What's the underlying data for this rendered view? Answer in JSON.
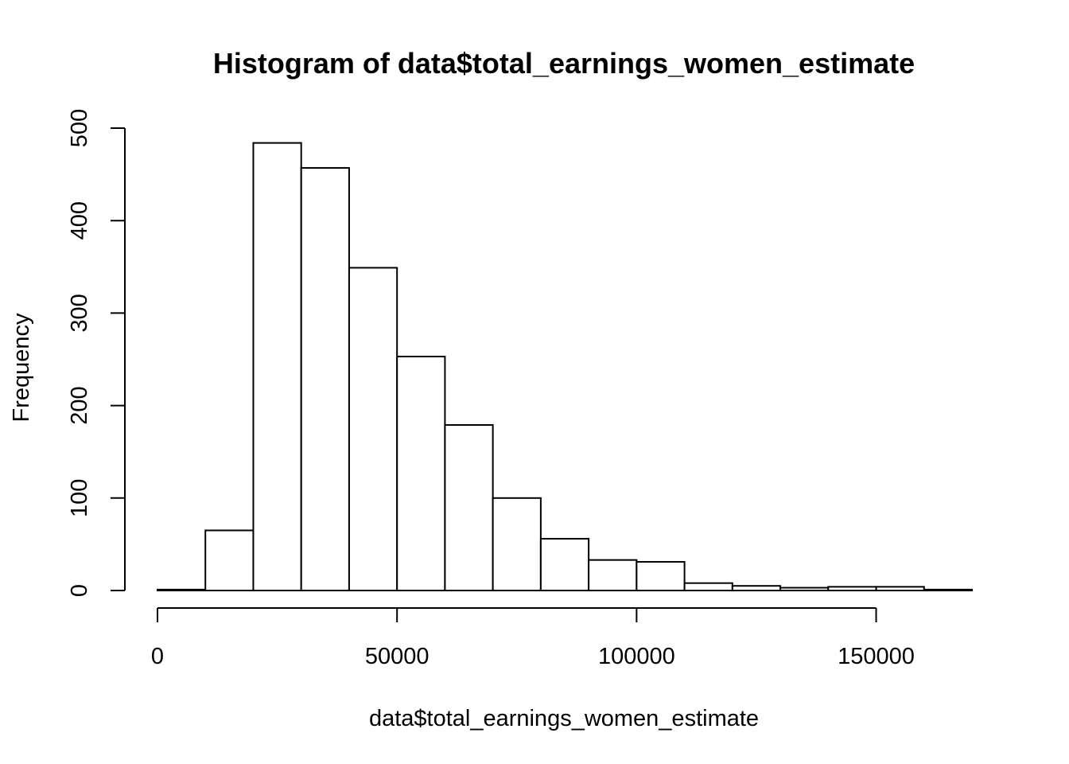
{
  "chart_data": {
    "type": "bar",
    "title": "Histogram of data$total_earnings_women_estimate",
    "xlabel": "data$total_earnings_women_estimate",
    "ylabel": "Frequency",
    "bin_edges": [
      0,
      10000,
      20000,
      30000,
      40000,
      50000,
      60000,
      70000,
      80000,
      90000,
      100000,
      110000,
      120000,
      130000,
      140000,
      150000,
      160000,
      170000
    ],
    "values": [
      1,
      65,
      484,
      457,
      349,
      253,
      179,
      100,
      56,
      33,
      31,
      8,
      5,
      3,
      4,
      4,
      1
    ],
    "xlim": [
      0,
      170000
    ],
    "ylim": [
      0,
      500
    ],
    "x_ticks": [
      0,
      50000,
      100000,
      150000
    ],
    "x_tick_labels": [
      "0",
      "50000",
      "100000",
      "150000"
    ],
    "y_ticks": [
      0,
      100,
      200,
      300,
      400,
      500
    ],
    "y_tick_labels": [
      "0",
      "100",
      "200",
      "300",
      "400",
      "500"
    ],
    "grid": false,
    "colors": {
      "bar_fill": "#ffffff",
      "bar_stroke": "#000000"
    }
  }
}
